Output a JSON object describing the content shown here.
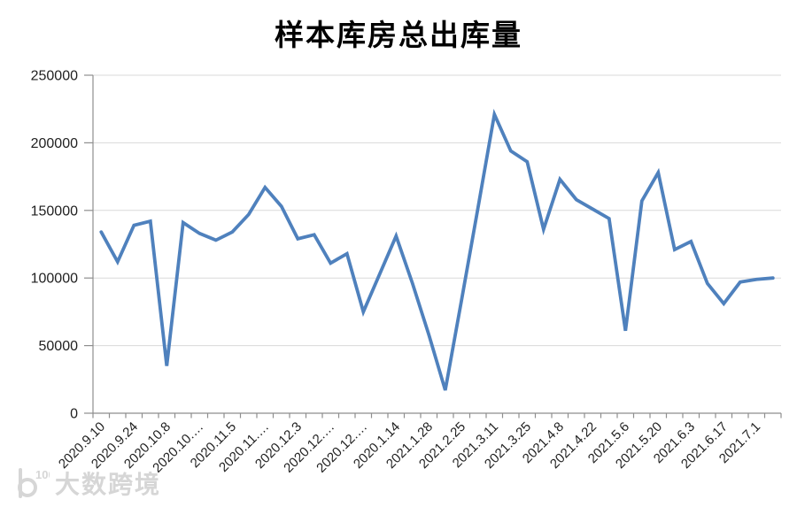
{
  "title": "样本库房总出库量",
  "watermark": {
    "logo_text": "100",
    "text": "大数跨境"
  },
  "colors": {
    "line": "#4F81BD",
    "grid": "#D9D9D9",
    "axis": "#8E8E8E",
    "tick_label": "#1F1F1F",
    "title": "#000000",
    "watermark": "#D6D6D6",
    "frame_left": "#4A4A4A",
    "frame_right": "#ABABAB",
    "frame_bottom": "#9B9B9B"
  },
  "chart_data": {
    "type": "line",
    "title": "样本库房总出库量",
    "values": [
      134000,
      112000,
      139000,
      142000,
      35000,
      141000,
      133000,
      128000,
      134000,
      147000,
      167000,
      153000,
      129000,
      132000,
      111000,
      118000,
      75000,
      103000,
      131000,
      96000,
      58000,
      17000,
      84000,
      152000,
      221000,
      194000,
      186000,
      136000,
      173000,
      158000,
      151000,
      144000,
      61000,
      157000,
      178000,
      121000,
      127000,
      96000,
      81000,
      97000,
      99000,
      100000
    ],
    "n_points": 42,
    "x_tick_labels": [
      "2020.9.10",
      "2020.9.24",
      "2020.10.8",
      "2020.10.…",
      "2020.11.5",
      "2020.11.…",
      "2020.12.3",
      "2020.12.…",
      "2020.12.…",
      "2020.1.14",
      "2021.1.28",
      "2021.2.25",
      "2021.3.11",
      "2021.3.25",
      "2021.4.8",
      "2021.4.22",
      "2021.5.6",
      "2021.5.20",
      "2021.6.3",
      "2021.6.17",
      "2021.7.1"
    ],
    "x_label_every_n_points": 2,
    "ylim": [
      0,
      250000
    ],
    "y_ticks": [
      0,
      50000,
      100000,
      150000,
      200000,
      250000
    ],
    "grid": true,
    "legend": false
  }
}
